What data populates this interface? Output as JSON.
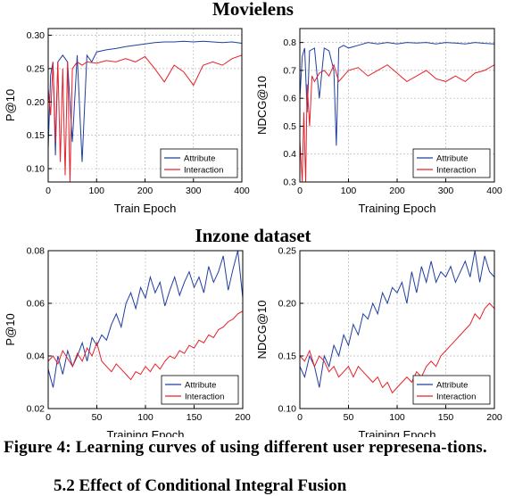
{
  "sections": [
    {
      "title": "Movielens"
    },
    {
      "title": "Inzone dataset"
    }
  ],
  "caption": "Figure 4: Learning curves of using different user represena-tions.",
  "next_heading": "5.2   Effect of Conditional Integral Fusion",
  "chart_data": [
    {
      "type": "line",
      "section": "Movielens",
      "xlabel": "Train Epoch",
      "ylabel": "P@10",
      "xlim": [
        0,
        400
      ],
      "ylim": [
        0.08,
        0.31
      ],
      "xticks": [
        0,
        100,
        200,
        300,
        400
      ],
      "yticks": [
        0.1,
        0.15,
        0.2,
        0.25,
        0.3
      ],
      "ytick_labels": [
        "0.10",
        "0.15",
        "0.20",
        "0.25",
        "0.30"
      ],
      "grid": true,
      "legend": "bottom-right",
      "series": [
        {
          "name": "Attribute",
          "color": "#1f3fa0",
          "x": [
            0,
            5,
            10,
            15,
            20,
            30,
            40,
            50,
            60,
            70,
            80,
            90,
            100,
            120,
            140,
            160,
            180,
            200,
            220,
            240,
            260,
            280,
            300,
            320,
            340,
            360,
            380,
            400
          ],
          "values": [
            0.13,
            0.24,
            0.26,
            0.12,
            0.26,
            0.27,
            0.26,
            0.14,
            0.27,
            0.11,
            0.27,
            0.26,
            0.275,
            0.278,
            0.28,
            0.283,
            0.285,
            0.287,
            0.289,
            0.29,
            0.29,
            0.291,
            0.29,
            0.291,
            0.29,
            0.289,
            0.29,
            0.288
          ]
        },
        {
          "name": "Interaction",
          "color": "#e8202a",
          "x": [
            0,
            5,
            10,
            15,
            20,
            25,
            30,
            35,
            40,
            45,
            50,
            60,
            70,
            80,
            100,
            120,
            140,
            160,
            180,
            200,
            220,
            240,
            260,
            280,
            300,
            320,
            340,
            360,
            380,
            400
          ],
          "values": [
            0.22,
            0.18,
            0.26,
            0.14,
            0.26,
            0.11,
            0.25,
            0.09,
            0.26,
            0.08,
            0.25,
            0.26,
            0.255,
            0.26,
            0.258,
            0.262,
            0.26,
            0.265,
            0.26,
            0.268,
            0.25,
            0.23,
            0.255,
            0.245,
            0.225,
            0.255,
            0.26,
            0.255,
            0.265,
            0.27
          ]
        }
      ]
    },
    {
      "type": "line",
      "section": "Movielens",
      "xlabel": "Training Epoch",
      "ylabel": "NDCG@10",
      "xlim": [
        0,
        400
      ],
      "ylim": [
        0.3,
        0.85
      ],
      "xticks": [
        0,
        100,
        200,
        300,
        400
      ],
      "yticks": [
        0.3,
        0.4,
        0.5,
        0.6,
        0.7,
        0.8
      ],
      "ytick_labels": [
        "0.3",
        "0.4",
        "0.5",
        "0.6",
        "0.7",
        "0.8"
      ],
      "grid": true,
      "legend": "bottom-right",
      "series": [
        {
          "name": "Attribute",
          "color": "#1f3fa0",
          "x": [
            0,
            5,
            10,
            15,
            20,
            30,
            40,
            50,
            60,
            70,
            75,
            80,
            90,
            100,
            120,
            140,
            160,
            180,
            200,
            220,
            240,
            260,
            280,
            300,
            320,
            340,
            360,
            380,
            400
          ],
          "values": [
            0.6,
            0.75,
            0.78,
            0.55,
            0.77,
            0.78,
            0.6,
            0.78,
            0.77,
            0.7,
            0.43,
            0.78,
            0.79,
            0.78,
            0.79,
            0.8,
            0.795,
            0.8,
            0.795,
            0.8,
            0.798,
            0.8,
            0.795,
            0.8,
            0.798,
            0.795,
            0.8,
            0.797,
            0.795
          ]
        },
        {
          "name": "Interaction",
          "color": "#e8202a",
          "x": [
            0,
            5,
            8,
            12,
            15,
            20,
            25,
            30,
            40,
            50,
            60,
            70,
            80,
            100,
            120,
            140,
            160,
            180,
            200,
            220,
            240,
            260,
            280,
            300,
            320,
            340,
            360,
            380,
            400
          ],
          "values": [
            0.45,
            0.3,
            0.55,
            0.3,
            0.65,
            0.5,
            0.68,
            0.66,
            0.69,
            0.7,
            0.68,
            0.72,
            0.66,
            0.7,
            0.71,
            0.68,
            0.7,
            0.72,
            0.69,
            0.66,
            0.68,
            0.7,
            0.67,
            0.66,
            0.68,
            0.66,
            0.69,
            0.7,
            0.72
          ]
        }
      ]
    },
    {
      "type": "line",
      "section": "Inzone dataset",
      "xlabel": "Training Epoch",
      "ylabel": "P@10",
      "xlim": [
        0,
        200
      ],
      "ylim": [
        0.02,
        0.08
      ],
      "xticks": [
        0,
        50,
        100,
        150,
        200
      ],
      "yticks": [
        0.02,
        0.04,
        0.06,
        0.08
      ],
      "ytick_labels": [
        "0.02",
        "0.04",
        "0.06",
        "0.08"
      ],
      "grid": true,
      "legend": "bottom-right",
      "series": [
        {
          "name": "Attribute",
          "color": "#1f3fa0",
          "x": [
            0,
            5,
            10,
            15,
            20,
            25,
            30,
            35,
            40,
            45,
            50,
            55,
            60,
            65,
            70,
            75,
            80,
            85,
            90,
            95,
            100,
            105,
            110,
            115,
            120,
            125,
            130,
            135,
            140,
            145,
            150,
            155,
            160,
            165,
            170,
            175,
            180,
            185,
            190,
            195,
            200
          ],
          "values": [
            0.035,
            0.028,
            0.04,
            0.033,
            0.042,
            0.036,
            0.04,
            0.045,
            0.038,
            0.047,
            0.044,
            0.048,
            0.046,
            0.052,
            0.056,
            0.051,
            0.06,
            0.064,
            0.058,
            0.066,
            0.062,
            0.07,
            0.064,
            0.068,
            0.059,
            0.065,
            0.07,
            0.063,
            0.068,
            0.072,
            0.066,
            0.07,
            0.064,
            0.074,
            0.068,
            0.072,
            0.078,
            0.065,
            0.073,
            0.08,
            0.062
          ]
        },
        {
          "name": "Interaction",
          "color": "#e8202a",
          "x": [
            0,
            5,
            10,
            15,
            20,
            25,
            30,
            35,
            40,
            45,
            50,
            55,
            60,
            65,
            70,
            75,
            80,
            85,
            90,
            95,
            100,
            105,
            110,
            115,
            120,
            125,
            130,
            135,
            140,
            145,
            150,
            155,
            160,
            165,
            170,
            175,
            180,
            185,
            190,
            195,
            200
          ],
          "values": [
            0.038,
            0.04,
            0.037,
            0.042,
            0.039,
            0.036,
            0.041,
            0.038,
            0.043,
            0.04,
            0.045,
            0.038,
            0.036,
            0.034,
            0.037,
            0.035,
            0.033,
            0.031,
            0.034,
            0.033,
            0.036,
            0.034,
            0.037,
            0.035,
            0.038,
            0.04,
            0.039,
            0.042,
            0.041,
            0.044,
            0.043,
            0.046,
            0.045,
            0.048,
            0.047,
            0.05,
            0.051,
            0.053,
            0.054,
            0.056,
            0.057
          ]
        }
      ]
    },
    {
      "type": "line",
      "section": "Inzone dataset",
      "xlabel": "Training Epoch",
      "ylabel": "NDCG@10",
      "xlim": [
        0,
        200
      ],
      "ylim": [
        0.1,
        0.25
      ],
      "xticks": [
        0,
        50,
        100,
        150,
        200
      ],
      "yticks": [
        0.1,
        0.15,
        0.2,
        0.25
      ],
      "ytick_labels": [
        "0.10",
        "0.15",
        "0.20",
        "0.25"
      ],
      "grid": true,
      "legend": "bottom-right",
      "series": [
        {
          "name": "Attribute",
          "color": "#1f3fa0",
          "x": [
            0,
            5,
            10,
            15,
            20,
            25,
            30,
            35,
            40,
            45,
            50,
            55,
            60,
            65,
            70,
            75,
            80,
            85,
            90,
            95,
            100,
            105,
            110,
            115,
            120,
            125,
            130,
            135,
            140,
            145,
            150,
            155,
            160,
            165,
            170,
            175,
            180,
            185,
            190,
            195,
            200
          ],
          "values": [
            0.14,
            0.13,
            0.15,
            0.14,
            0.12,
            0.15,
            0.14,
            0.16,
            0.15,
            0.17,
            0.16,
            0.18,
            0.17,
            0.19,
            0.185,
            0.2,
            0.19,
            0.21,
            0.2,
            0.215,
            0.21,
            0.22,
            0.2,
            0.23,
            0.21,
            0.235,
            0.22,
            0.24,
            0.22,
            0.23,
            0.225,
            0.235,
            0.22,
            0.23,
            0.24,
            0.225,
            0.25,
            0.22,
            0.245,
            0.23,
            0.225
          ]
        },
        {
          "name": "Interaction",
          "color": "#e8202a",
          "x": [
            0,
            5,
            10,
            15,
            20,
            25,
            30,
            35,
            40,
            45,
            50,
            55,
            60,
            65,
            70,
            75,
            80,
            85,
            90,
            95,
            100,
            105,
            110,
            115,
            120,
            125,
            130,
            135,
            140,
            145,
            150,
            155,
            160,
            165,
            170,
            175,
            180,
            185,
            190,
            195,
            200
          ],
          "values": [
            0.15,
            0.145,
            0.155,
            0.14,
            0.15,
            0.145,
            0.135,
            0.14,
            0.13,
            0.135,
            0.14,
            0.13,
            0.14,
            0.135,
            0.13,
            0.125,
            0.13,
            0.12,
            0.125,
            0.115,
            0.12,
            0.125,
            0.13,
            0.125,
            0.135,
            0.13,
            0.14,
            0.145,
            0.14,
            0.15,
            0.155,
            0.16,
            0.165,
            0.17,
            0.175,
            0.18,
            0.19,
            0.185,
            0.195,
            0.2,
            0.195
          ]
        }
      ]
    }
  ]
}
